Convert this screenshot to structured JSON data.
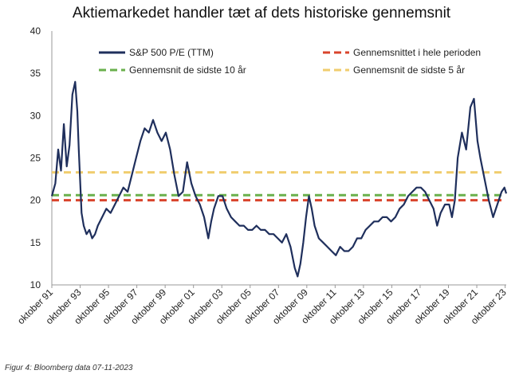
{
  "title": "Aktiemarkedet handler tæt af dets historiske gennemsnit",
  "caption": "Figur 4: Bloomberg data 07-11-2023",
  "chart_data": {
    "type": "line",
    "title": "Aktiemarkedet handler tæt af dets historiske gennemsnit",
    "xlabel": "",
    "ylabel": "",
    "ylim": [
      10,
      40
    ],
    "yticks": [
      10,
      15,
      20,
      25,
      30,
      35,
      40
    ],
    "xlim": [
      1991.75,
      2023.83
    ],
    "xticks": [
      {
        "x": 1991.75,
        "label": "oktober 91"
      },
      {
        "x": 1993.75,
        "label": "oktober 93"
      },
      {
        "x": 1995.75,
        "label": "oktober 95"
      },
      {
        "x": 1997.75,
        "label": "oktober 97"
      },
      {
        "x": 1999.75,
        "label": "oktober 99"
      },
      {
        "x": 2001.75,
        "label": "oktober 01"
      },
      {
        "x": 2003.75,
        "label": "oktober 03"
      },
      {
        "x": 2005.75,
        "label": "oktober 05"
      },
      {
        "x": 2007.75,
        "label": "oktober 07"
      },
      {
        "x": 2009.75,
        "label": "oktober 09"
      },
      {
        "x": 2011.75,
        "label": "oktober 11"
      },
      {
        "x": 2013.75,
        "label": "oktober 13"
      },
      {
        "x": 2015.75,
        "label": "oktober 15"
      },
      {
        "x": 2017.75,
        "label": "oktober 17"
      },
      {
        "x": 2019.75,
        "label": "oktober 19"
      },
      {
        "x": 2021.75,
        "label": "oktober 21"
      },
      {
        "x": 2023.75,
        "label": "oktober 23"
      }
    ],
    "grid": false,
    "legend_position": "top",
    "series": [
      {
        "name": "S&P 500 P/E (TTM)",
        "style": "solid",
        "color": "#1f2f5c",
        "x": [
          1991.75,
          1992.0,
          1992.2,
          1992.4,
          1992.6,
          1992.8,
          1993.0,
          1993.2,
          1993.4,
          1993.55,
          1993.65,
          1993.85,
          1994.0,
          1994.2,
          1994.4,
          1994.6,
          1994.8,
          1995.0,
          1995.3,
          1995.6,
          1995.9,
          1996.2,
          1996.5,
          1996.8,
          1997.1,
          1997.4,
          1997.7,
          1998.0,
          1998.3,
          1998.6,
          1998.9,
          1999.2,
          1999.5,
          1999.8,
          2000.1,
          2000.4,
          2000.7,
          2001.0,
          2001.3,
          2001.6,
          2001.9,
          2002.2,
          2002.5,
          2002.8,
          2003.0,
          2003.2,
          2003.5,
          2003.8,
          2004.1,
          2004.4,
          2004.7,
          2005.0,
          2005.3,
          2005.6,
          2005.9,
          2006.2,
          2006.5,
          2006.8,
          2007.1,
          2007.4,
          2007.7,
          2008.0,
          2008.3,
          2008.6,
          2008.9,
          2009.1,
          2009.3,
          2009.5,
          2009.7,
          2009.9,
          2010.1,
          2010.3,
          2010.6,
          2010.9,
          2011.2,
          2011.5,
          2011.8,
          2012.1,
          2012.4,
          2012.7,
          2013.0,
          2013.3,
          2013.6,
          2013.9,
          2014.2,
          2014.5,
          2014.8,
          2015.1,
          2015.4,
          2015.7,
          2016.0,
          2016.3,
          2016.6,
          2016.9,
          2017.2,
          2017.5,
          2017.8,
          2018.1,
          2018.4,
          2018.7,
          2018.95,
          2019.2,
          2019.5,
          2019.8,
          2020.0,
          2020.2,
          2020.4,
          2020.7,
          2021.0,
          2021.3,
          2021.55,
          2021.8,
          2022.0,
          2022.3,
          2022.6,
          2022.9,
          2023.2,
          2023.5,
          2023.7,
          2023.83
        ],
        "y": [
          20.5,
          22.0,
          26.0,
          23.5,
          29.0,
          24.0,
          26.5,
          32.5,
          34.0,
          30.5,
          26.0,
          18.5,
          17.0,
          16.0,
          16.5,
          15.5,
          16.0,
          17.0,
          18.0,
          19.0,
          18.5,
          19.5,
          20.5,
          21.5,
          21.0,
          23.0,
          25.0,
          27.0,
          28.5,
          28.0,
          29.5,
          28.0,
          27.0,
          28.0,
          26.0,
          23.0,
          20.5,
          21.0,
          24.5,
          22.0,
          20.5,
          19.5,
          18.0,
          15.5,
          17.5,
          19.0,
          20.5,
          20.5,
          19.0,
          18.0,
          17.5,
          17.0,
          17.0,
          16.5,
          16.5,
          17.0,
          16.5,
          16.5,
          16.0,
          16.0,
          15.5,
          15.0,
          16.0,
          14.5,
          12.0,
          11.0,
          12.5,
          15.0,
          18.0,
          20.5,
          19.0,
          17.0,
          15.5,
          15.0,
          14.5,
          14.0,
          13.5,
          14.5,
          14.0,
          14.0,
          14.5,
          15.5,
          15.5,
          16.5,
          17.0,
          17.5,
          17.5,
          18.0,
          18.0,
          17.5,
          18.0,
          19.0,
          19.5,
          20.5,
          21.0,
          21.5,
          21.5,
          21.0,
          20.0,
          19.0,
          17.0,
          18.5,
          19.5,
          19.5,
          18.0,
          20.0,
          25.0,
          28.0,
          26.0,
          31.0,
          32.0,
          27.0,
          25.0,
          22.5,
          20.0,
          18.0,
          19.5,
          21.0,
          21.5,
          20.8
        ]
      },
      {
        "name": "Gennemsnittet i hele perioden",
        "style": "dashed",
        "color": "#d9442c",
        "value": 20.0
      },
      {
        "name": "Gennemsnit de sidste 10 år",
        "style": "dashed",
        "color": "#6ab04c",
        "value": 20.6
      },
      {
        "name": "Gennemsnit de sidste 5 år",
        "style": "dashed",
        "color": "#f0cd6e",
        "value": 23.3
      }
    ]
  }
}
